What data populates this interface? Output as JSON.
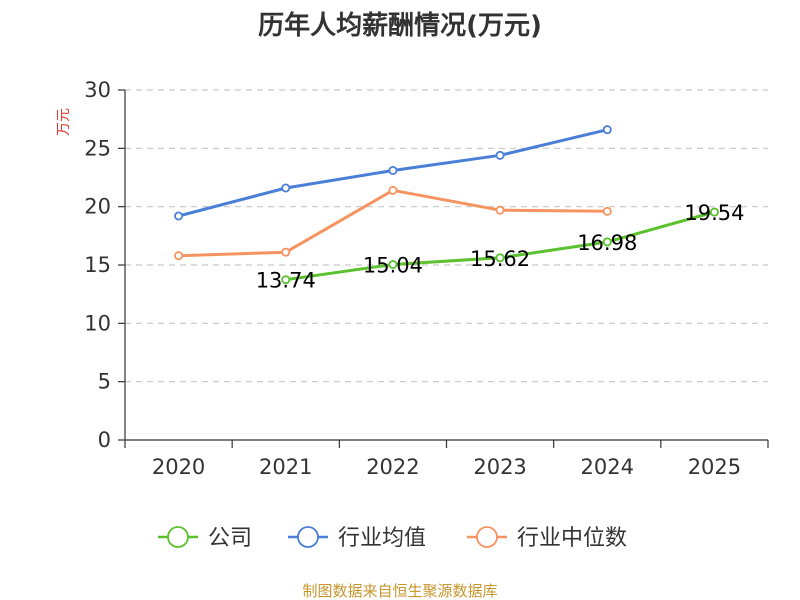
{
  "chart_data": {
    "type": "line",
    "title": "历年人均薪酬情况(万元)",
    "ylabel": "万元",
    "xlabel": "",
    "ylim": [
      0,
      30
    ],
    "yticks": [
      0,
      5,
      10,
      15,
      20,
      25,
      30
    ],
    "categories": [
      "2020",
      "2021",
      "2022",
      "2023",
      "2024",
      "2025"
    ],
    "grid": true,
    "legend_position": "bottom",
    "series": [
      {
        "name": "公司",
        "color": "#5cc12e",
        "values": [
          null,
          13.74,
          15.04,
          15.62,
          16.98,
          19.54
        ],
        "labels": [
          "",
          "13.74",
          "15.04",
          "15.62",
          "16.98",
          "19.54"
        ]
      },
      {
        "name": "行业均值",
        "color": "#4a7fd8",
        "values": [
          19.2,
          21.6,
          23.1,
          24.4,
          26.6,
          null
        ],
        "labels": [
          "",
          "",
          "",
          "",
          "",
          ""
        ]
      },
      {
        "name": "行业中位数",
        "color": "#f59460",
        "values": [
          15.8,
          16.1,
          21.4,
          19.7,
          19.6,
          null
        ],
        "labels": [
          "",
          "",
          "",
          "",
          "",
          ""
        ]
      }
    ],
    "source": "制图数据来自恒生聚源数据库"
  }
}
